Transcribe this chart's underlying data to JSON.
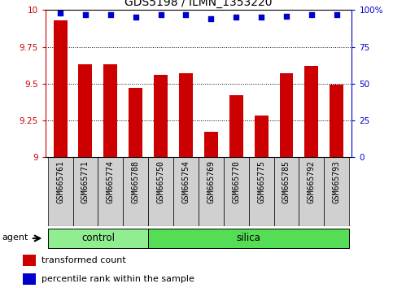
{
  "title": "GDS5198 / ILMN_1353220",
  "samples": [
    "GSM665761",
    "GSM665771",
    "GSM665774",
    "GSM665788",
    "GSM665750",
    "GSM665754",
    "GSM665769",
    "GSM665770",
    "GSM665775",
    "GSM665785",
    "GSM665792",
    "GSM665793"
  ],
  "bar_values": [
    9.93,
    9.63,
    9.63,
    9.47,
    9.56,
    9.57,
    9.17,
    9.42,
    9.28,
    9.57,
    9.62,
    9.49
  ],
  "percentile_values": [
    98,
    97,
    97,
    95,
    97,
    97,
    94,
    95,
    95,
    96,
    97,
    97
  ],
  "bar_color": "#cc0000",
  "dot_color": "#0000cc",
  "ylim": [
    9.0,
    10.0
  ],
  "yticks": [
    9.0,
    9.25,
    9.5,
    9.75,
    10.0
  ],
  "ytick_labels": [
    "9",
    "9.25",
    "9.5",
    "9.75",
    "10"
  ],
  "right_ylim": [
    0,
    100
  ],
  "right_yticks": [
    0,
    25,
    50,
    75,
    100
  ],
  "right_ytick_labels": [
    "0",
    "25",
    "50",
    "75",
    "100%"
  ],
  "n_control": 4,
  "n_silica": 8,
  "control_label": "control",
  "silica_label": "silica",
  "agent_label": "agent",
  "legend_bar_label": "transformed count",
  "legend_dot_label": "percentile rank within the sample",
  "control_color": "#90ee90",
  "silica_color": "#55dd55",
  "label_bg_color": "#d0d0d0",
  "title_fontsize": 10,
  "tick_fontsize": 7.5,
  "label_fontsize": 7,
  "bar_width": 0.55
}
